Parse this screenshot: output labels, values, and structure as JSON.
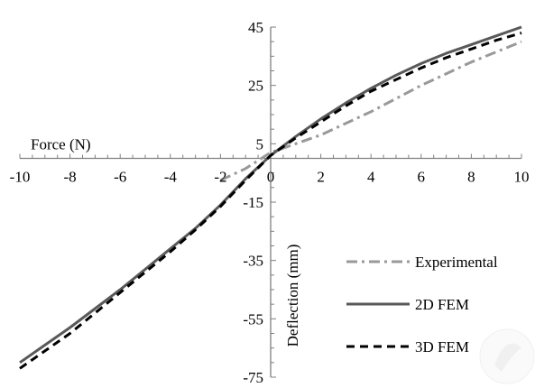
{
  "chart_data": {
    "type": "line",
    "xlabel": "Force (N)",
    "ylabel": "Deflection (mm)",
    "xlim": [
      -10,
      10
    ],
    "ylim": [
      -75,
      45
    ],
    "x_ticks": [
      -10,
      -8,
      -6,
      -4,
      -2,
      0,
      2,
      4,
      6,
      8,
      10
    ],
    "y_ticks": [
      45,
      25,
      5,
      -15,
      -35,
      -55,
      -75
    ],
    "axes_cross_at": {
      "x": 0,
      "y": 0
    },
    "grid": false,
    "legend_position": "bottom-right",
    "series": [
      {
        "name": "Experimental",
        "color": "#999999",
        "dash": "dash-dot",
        "x": [
          -2,
          -1,
          0,
          2,
          4,
          6,
          8,
          10
        ],
        "y": [
          -7.5,
          -3.5,
          2,
          8,
          16,
          25,
          33,
          40
        ]
      },
      {
        "name": "2D FEM",
        "color": "#595959",
        "dash": "solid",
        "x": [
          -10,
          -9,
          -8,
          -7,
          -6,
          -5,
          -4,
          -3,
          -2,
          -1,
          0,
          1,
          2,
          3,
          4,
          5,
          6,
          7,
          8,
          9,
          10
        ],
        "y": [
          -70,
          -64,
          -58,
          -51.5,
          -45,
          -38,
          -31,
          -24,
          -16,
          -7,
          1,
          7.5,
          13.5,
          19,
          24,
          28.5,
          32.5,
          36,
          39,
          42,
          45
        ]
      },
      {
        "name": "3D FEM",
        "color": "#000000",
        "dash": "dashed",
        "x": [
          -10,
          -9,
          -8,
          -7,
          -6,
          -5,
          -4,
          -3,
          -2,
          -1,
          0,
          1,
          2,
          3,
          4,
          5,
          6,
          7,
          8,
          9,
          10
        ],
        "y": [
          -72,
          -66,
          -60,
          -53,
          -46,
          -39,
          -32,
          -24.5,
          -16.5,
          -7.5,
          1,
          7,
          12.5,
          18,
          23,
          27,
          31,
          34.5,
          37.5,
          40.5,
          43
        ]
      }
    ]
  }
}
